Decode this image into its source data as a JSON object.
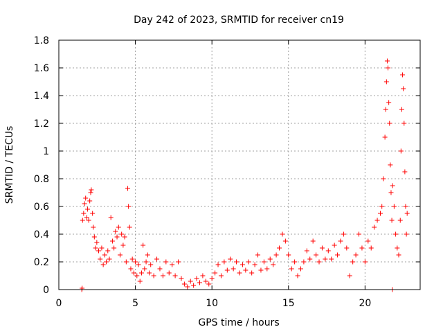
{
  "chart_data": {
    "type": "scatter",
    "title": "Day 242 of 2023, SRMTID for receiver cn19",
    "xlabel": "GPS time / hours",
    "ylabel": "SRMTID / TECUs",
    "xlim": [
      0,
      23.6
    ],
    "ylim": [
      0,
      1.8
    ],
    "x_ticks": [
      "0",
      "5",
      "10",
      "15",
      "20"
    ],
    "y_ticks": [
      "0",
      "0.2",
      "0.4",
      "0.6",
      "0.8",
      "1",
      "1.2",
      "1.4",
      "1.6",
      "1.8"
    ],
    "grid": true,
    "marker": "plus",
    "colors": {
      "series": "#ff0000",
      "grid": "#a0a0a0",
      "axis": "#000000"
    },
    "series": [
      {
        "name": "SRMTID",
        "points": [
          [
            1.5,
            0.0
          ],
          [
            1.52,
            0.01
          ],
          [
            1.55,
            0.5
          ],
          [
            1.62,
            0.55
          ],
          [
            1.68,
            0.62
          ],
          [
            1.75,
            0.66
          ],
          [
            1.82,
            0.52
          ],
          [
            1.88,
            0.58
          ],
          [
            1.95,
            0.5
          ],
          [
            2.02,
            0.64
          ],
          [
            2.08,
            0.7
          ],
          [
            2.12,
            0.72
          ],
          [
            2.2,
            0.55
          ],
          [
            2.25,
            0.45
          ],
          [
            2.32,
            0.38
          ],
          [
            2.4,
            0.3
          ],
          [
            2.48,
            0.34
          ],
          [
            2.6,
            0.28
          ],
          [
            2.7,
            0.22
          ],
          [
            2.8,
            0.3
          ],
          [
            2.9,
            0.18
          ],
          [
            3.0,
            0.25
          ],
          [
            3.1,
            0.2
          ],
          [
            3.2,
            0.28
          ],
          [
            3.3,
            0.22
          ],
          [
            3.4,
            0.52
          ],
          [
            3.5,
            0.35
          ],
          [
            3.6,
            0.3
          ],
          [
            3.7,
            0.42
          ],
          [
            3.8,
            0.38
          ],
          [
            3.9,
            0.45
          ],
          [
            4.0,
            0.25
          ],
          [
            4.1,
            0.4
          ],
          [
            4.2,
            0.32
          ],
          [
            4.3,
            0.38
          ],
          [
            4.4,
            0.2
          ],
          [
            4.5,
            0.73
          ],
          [
            4.55,
            0.6
          ],
          [
            4.62,
            0.45
          ],
          [
            4.7,
            0.15
          ],
          [
            4.8,
            0.22
          ],
          [
            4.9,
            0.12
          ],
          [
            5.0,
            0.2
          ],
          [
            5.1,
            0.1
          ],
          [
            5.2,
            0.18
          ],
          [
            5.3,
            0.06
          ],
          [
            5.4,
            0.12
          ],
          [
            5.5,
            0.32
          ],
          [
            5.6,
            0.15
          ],
          [
            5.7,
            0.2
          ],
          [
            5.8,
            0.25
          ],
          [
            5.9,
            0.12
          ],
          [
            6.0,
            0.18
          ],
          [
            6.2,
            0.1
          ],
          [
            6.4,
            0.22
          ],
          [
            6.6,
            0.15
          ],
          [
            6.8,
            0.1
          ],
          [
            7.0,
            0.2
          ],
          [
            7.2,
            0.12
          ],
          [
            7.4,
            0.18
          ],
          [
            7.6,
            0.1
          ],
          [
            7.8,
            0.2
          ],
          [
            8.0,
            0.08
          ],
          [
            8.2,
            0.04
          ],
          [
            8.4,
            0.02
          ],
          [
            8.6,
            0.06
          ],
          [
            8.8,
            0.03
          ],
          [
            9.0,
            0.08
          ],
          [
            9.2,
            0.05
          ],
          [
            9.4,
            0.1
          ],
          [
            9.6,
            0.06
          ],
          [
            9.8,
            0.04
          ],
          [
            10.0,
            0.08
          ],
          [
            10.2,
            0.12
          ],
          [
            10.4,
            0.18
          ],
          [
            10.6,
            0.1
          ],
          [
            10.8,
            0.2
          ],
          [
            11.0,
            0.14
          ],
          [
            11.2,
            0.22
          ],
          [
            11.4,
            0.15
          ],
          [
            11.6,
            0.2
          ],
          [
            11.8,
            0.12
          ],
          [
            12.0,
            0.18
          ],
          [
            12.2,
            0.14
          ],
          [
            12.4,
            0.2
          ],
          [
            12.6,
            0.12
          ],
          [
            12.8,
            0.18
          ],
          [
            13.0,
            0.25
          ],
          [
            13.2,
            0.14
          ],
          [
            13.4,
            0.2
          ],
          [
            13.6,
            0.15
          ],
          [
            13.8,
            0.22
          ],
          [
            14.0,
            0.18
          ],
          [
            14.2,
            0.25
          ],
          [
            14.4,
            0.3
          ],
          [
            14.6,
            0.4
          ],
          [
            14.8,
            0.35
          ],
          [
            15.0,
            0.25
          ],
          [
            15.2,
            0.15
          ],
          [
            15.4,
            0.2
          ],
          [
            15.6,
            0.1
          ],
          [
            15.8,
            0.15
          ],
          [
            16.0,
            0.2
          ],
          [
            16.2,
            0.28
          ],
          [
            16.4,
            0.22
          ],
          [
            16.6,
            0.35
          ],
          [
            16.8,
            0.25
          ],
          [
            17.0,
            0.2
          ],
          [
            17.2,
            0.3
          ],
          [
            17.4,
            0.22
          ],
          [
            17.6,
            0.28
          ],
          [
            17.8,
            0.22
          ],
          [
            18.0,
            0.32
          ],
          [
            18.2,
            0.25
          ],
          [
            18.4,
            0.35
          ],
          [
            18.6,
            0.4
          ],
          [
            18.8,
            0.3
          ],
          [
            19.0,
            0.1
          ],
          [
            19.2,
            0.2
          ],
          [
            19.4,
            0.25
          ],
          [
            19.6,
            0.4
          ],
          [
            19.8,
            0.3
          ],
          [
            20.0,
            0.2
          ],
          [
            20.2,
            0.35
          ],
          [
            20.4,
            0.3
          ],
          [
            20.6,
            0.45
          ],
          [
            20.8,
            0.5
          ],
          [
            21.0,
            0.55
          ],
          [
            21.1,
            0.6
          ],
          [
            21.2,
            0.8
          ],
          [
            21.3,
            1.1
          ],
          [
            21.35,
            1.3
          ],
          [
            21.4,
            1.5
          ],
          [
            21.45,
            1.65
          ],
          [
            21.5,
            1.6
          ],
          [
            21.55,
            1.35
          ],
          [
            21.6,
            1.2
          ],
          [
            21.65,
            0.9
          ],
          [
            21.7,
            0.7
          ],
          [
            21.75,
            0.5
          ],
          [
            21.78,
            0.0
          ],
          [
            21.8,
            0.75
          ],
          [
            21.9,
            0.6
          ],
          [
            22.0,
            0.4
          ],
          [
            22.1,
            0.3
          ],
          [
            22.2,
            0.25
          ],
          [
            22.3,
            0.5
          ],
          [
            22.35,
            1.0
          ],
          [
            22.4,
            1.3
          ],
          [
            22.45,
            1.55
          ],
          [
            22.5,
            1.45
          ],
          [
            22.55,
            1.2
          ],
          [
            22.6,
            0.85
          ],
          [
            22.65,
            0.6
          ],
          [
            22.7,
            0.4
          ],
          [
            22.75,
            0.55
          ]
        ]
      }
    ]
  }
}
